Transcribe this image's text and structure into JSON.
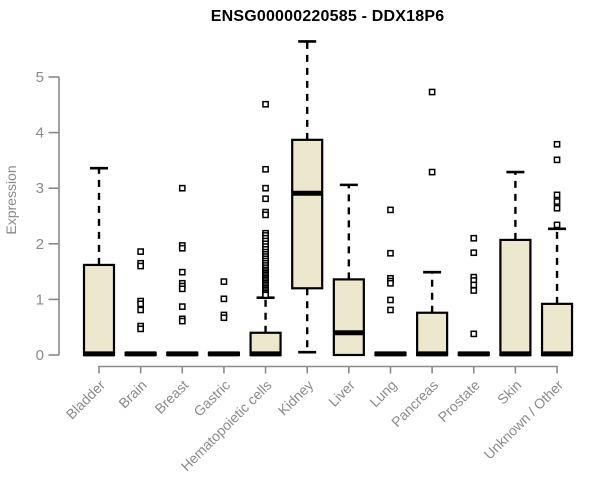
{
  "title": "ENSG00000220585 - DDX18P6",
  "chart_data": {
    "type": "boxplot",
    "title": "ENSG00000220585 - DDX18P6",
    "ylabel": "Expression",
    "xlabel": "",
    "ylim": [
      0,
      5.7
    ],
    "yticks": [
      0,
      1,
      2,
      3,
      4,
      5
    ],
    "grid": false,
    "legend": false,
    "colors": {
      "box_fill": "#ece7cd",
      "box_border": "#000000",
      "median": "#000000",
      "whisker": "#000000",
      "axis": "#8a8a8a",
      "tick_label": "#8a8a8a",
      "title": "#000000",
      "background": "#ffffff"
    },
    "categories": [
      "Bladder",
      "Brain",
      "Breast",
      "Gastric",
      "Hematopoietic cells",
      "Kidney",
      "Liver",
      "Lung",
      "Pancreas",
      "Prostate",
      "Skin",
      "Unknown / Other"
    ],
    "boxes": [
      {
        "category": "Bladder",
        "q1": 0,
        "median": 0.02,
        "q3": 1.62,
        "whisker_low": 0,
        "whisker_high": 3.36,
        "outliers": []
      },
      {
        "category": "Brain",
        "q1": 0,
        "median": 0.02,
        "q3": 0.04,
        "whisker_low": 0,
        "whisker_high": 0.04,
        "outliers": [
          1.86,
          1.65,
          1.6,
          0.97,
          0.92,
          0.81,
          0.52,
          0.47
        ]
      },
      {
        "category": "Breast",
        "q1": 0,
        "median": 0.02,
        "q3": 0.04,
        "whisker_low": 0,
        "whisker_high": 0.04,
        "outliers": [
          3.0,
          1.97,
          1.92,
          1.49,
          1.29,
          1.24,
          1.19,
          0.87,
          0.65,
          0.61
        ]
      },
      {
        "category": "Gastric",
        "q1": 0,
        "median": 0.02,
        "q3": 0.04,
        "whisker_low": 0,
        "whisker_high": 0.04,
        "outliers": [
          1.32,
          1.01,
          0.72,
          0.67
        ]
      },
      {
        "category": "Hematopoietic cells",
        "q1": 0,
        "median": 0.02,
        "q3": 0.4,
        "whisker_low": 0,
        "whisker_high": 1.03,
        "outliers": [
          4.51,
          3.34,
          3.0,
          2.81,
          2.57,
          2.52,
          2.19,
          2.15,
          2.1,
          2.05,
          2.0,
          1.95,
          1.9,
          1.85,
          1.81,
          1.77,
          1.73,
          1.69,
          1.65,
          1.61,
          1.57,
          1.53,
          1.5,
          1.47,
          1.44,
          1.41,
          1.38,
          1.35,
          1.32,
          1.29,
          1.26,
          1.23,
          1.2,
          1.17,
          1.14,
          1.11,
          1.08
        ]
      },
      {
        "category": "Kidney",
        "q1": 1.2,
        "median": 2.91,
        "q3": 3.87,
        "whisker_low": 0.05,
        "whisker_high": 5.64,
        "outliers": []
      },
      {
        "category": "Liver",
        "q1": 0,
        "median": 0.4,
        "q3": 1.36,
        "whisker_low": 0,
        "whisker_high": 3.06,
        "outliers": []
      },
      {
        "category": "Lung",
        "q1": 0,
        "median": 0.02,
        "q3": 0.04,
        "whisker_low": 0,
        "whisker_high": 0.04,
        "outliers": [
          2.61,
          1.83,
          1.38,
          1.33,
          1.29,
          0.99,
          0.81
        ]
      },
      {
        "category": "Pancreas",
        "q1": 0,
        "median": 0.02,
        "q3": 0.76,
        "whisker_low": 0,
        "whisker_high": 1.49,
        "outliers": [
          4.73,
          3.29
        ]
      },
      {
        "category": "Prostate",
        "q1": 0,
        "median": 0.02,
        "q3": 0.04,
        "whisker_low": 0,
        "whisker_high": 0.04,
        "outliers": [
          2.1,
          1.84,
          1.4,
          1.34,
          1.26,
          1.16,
          0.38
        ]
      },
      {
        "category": "Skin",
        "q1": 0,
        "median": 0.02,
        "q3": 2.07,
        "whisker_low": 0,
        "whisker_high": 3.29,
        "outliers": []
      },
      {
        "category": "Unknown / Other",
        "q1": 0,
        "median": 0.02,
        "q3": 0.92,
        "whisker_low": 0,
        "whisker_high": 2.27,
        "outliers": [
          3.79,
          3.51,
          2.88,
          2.76,
          2.64,
          2.34
        ]
      }
    ]
  }
}
